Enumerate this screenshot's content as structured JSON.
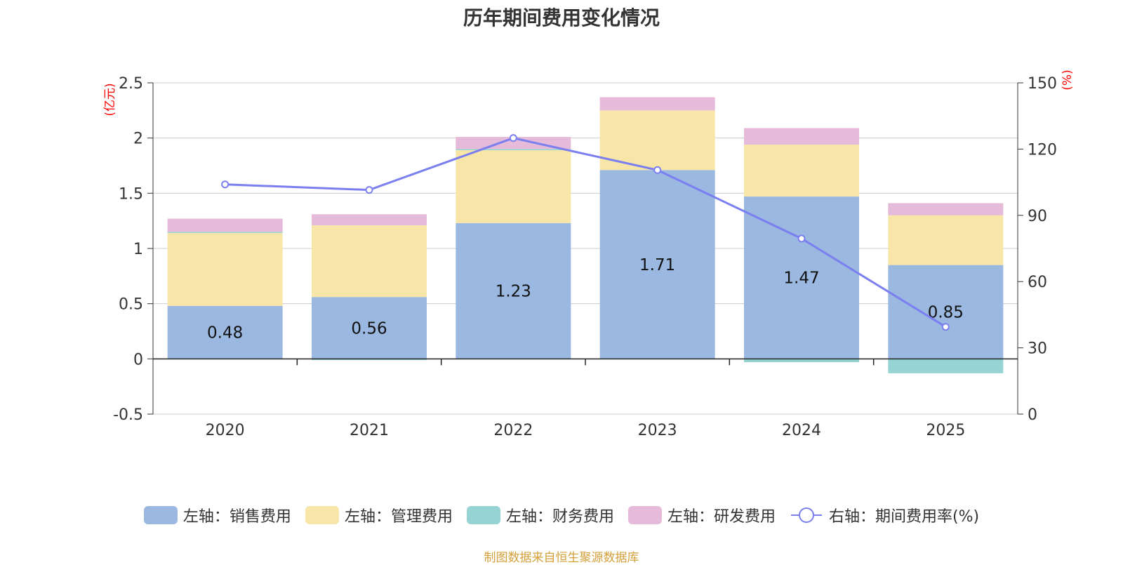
{
  "chart_data": {
    "type": "bar",
    "title": "历年期间费用变化情况",
    "categories": [
      "2020",
      "2021",
      "2022",
      "2023",
      "2024",
      "2025"
    ],
    "y_left_unit": "(亿元)",
    "y_right_unit": "(%)",
    "ylim_left": [
      -0.5,
      2.5
    ],
    "ylim_right": [
      0,
      150
    ],
    "y_left_ticks": [
      "-0.5",
      "0",
      "0.5",
      "1",
      "1.5",
      "2",
      "2.5"
    ],
    "y_right_ticks": [
      "0",
      "30",
      "60",
      "90",
      "120",
      "150"
    ],
    "series": [
      {
        "name": "左轴：销售费用",
        "color": "#9bb8e0",
        "values": [
          0.48,
          0.56,
          1.23,
          1.71,
          1.47,
          0.85
        ],
        "labels": [
          "0.48",
          "0.56",
          "1.23",
          "1.71",
          "1.47",
          "0.85"
        ]
      },
      {
        "name": "左轴：管理费用",
        "color": "#f8e6a8",
        "values": [
          0.66,
          0.65,
          0.66,
          0.54,
          0.47,
          0.45
        ]
      },
      {
        "name": "左轴：财务费用",
        "color": "#96d4d4",
        "values": [
          0.01,
          -0.01,
          0.01,
          0.0,
          -0.03,
          -0.13
        ]
      },
      {
        "name": "左轴：研发费用",
        "color": "#e6bad9",
        "values": [
          0.12,
          0.1,
          0.11,
          0.12,
          0.15,
          0.11
        ]
      }
    ],
    "line_series": {
      "name": "右轴：期间费用率(%)",
      "color": "#7b7ff0",
      "values": [
        104,
        101.5,
        125,
        110.5,
        79.5,
        39.5
      ]
    },
    "legend_position": "bottom"
  },
  "source_note": "制图数据来自恒生聚源数据库"
}
